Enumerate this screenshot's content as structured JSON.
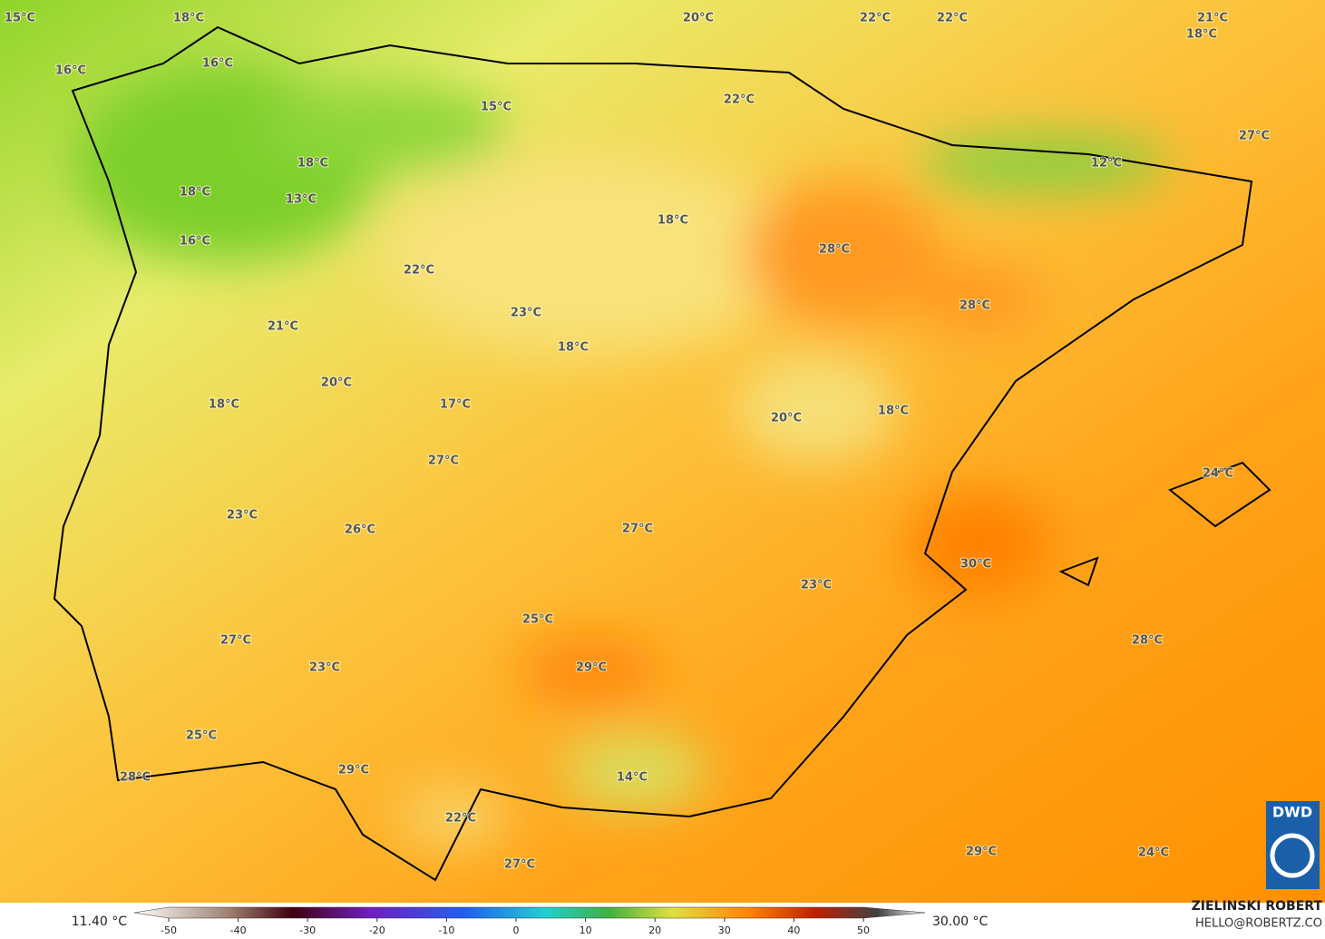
{
  "map": {
    "labels": [
      "15°C",
      "18°C",
      "20°C",
      "22°C",
      "22°C",
      "21°C",
      "18°C",
      "16°C",
      "16°C",
      "15°C",
      "22°C",
      "27°C",
      "18°C",
      "12°C",
      "18°C",
      "13°C",
      "18°C",
      "16°C",
      "28°C",
      "22°C",
      "28°C",
      "23°C",
      "21°C",
      "18°C",
      "20°C",
      "17°C",
      "18°C",
      "20°C",
      "18°C",
      "27°C",
      "24°C",
      "23°C",
      "26°C",
      "27°C",
      "30°C",
      "23°C",
      "25°C",
      "27°C",
      "28°C",
      "29°C",
      "23°C",
      "25°C",
      "28°C",
      "29°C",
      "14°C",
      "22°C",
      "27°C",
      "29°C",
      "24°C"
    ],
    "logo": "DWD",
    "author": "ZIELINSKI ROBERT",
    "contact": "HELLO@ROBERTZ.CO"
  },
  "legend": {
    "min_label": "11.40 °C",
    "max_label": "30.00 °C",
    "ticks": [
      -50,
      -40,
      -30,
      -20,
      -10,
      0,
      10,
      20,
      30,
      40,
      50
    ]
  }
}
